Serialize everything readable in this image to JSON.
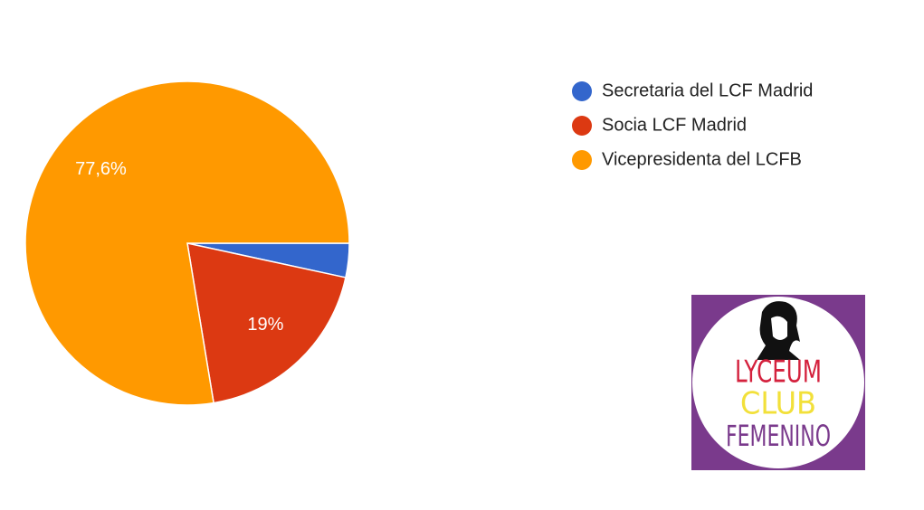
{
  "chart_data": {
    "type": "pie",
    "categories": [
      "Secretaria del LCF Madrid",
      "Socia LCF Madrid",
      "Vicepresidenta del LCFB"
    ],
    "values": [
      3.4,
      19,
      77.6
    ],
    "value_labels": [
      null,
      "19%",
      "77,6%"
    ],
    "colors": [
      "#3366cc",
      "#dc3912",
      "#ff9900"
    ],
    "start_angle": 0,
    "legend": "right"
  },
  "logo": {
    "lines": [
      "LYCEUM",
      "CLUB",
      "FEMENINO"
    ]
  }
}
